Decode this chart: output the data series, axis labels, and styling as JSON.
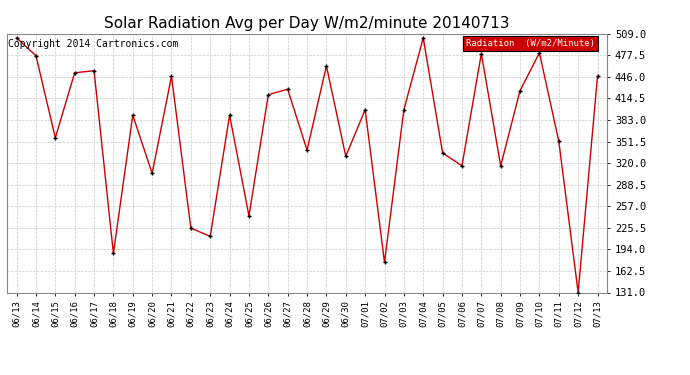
{
  "title": "Solar Radiation Avg per Day W/m2/minute 20140713",
  "copyright": "Copyright 2014 Cartronics.com",
  "legend_label": "Radiation  (W/m2/Minute)",
  "x_labels": [
    "06/13",
    "06/14",
    "06/15",
    "06/16",
    "06/17",
    "06/18",
    "06/19",
    "06/20",
    "06/21",
    "06/22",
    "06/23",
    "06/24",
    "06/25",
    "06/26",
    "06/27",
    "06/28",
    "06/29",
    "06/30",
    "07/01",
    "07/02",
    "07/03",
    "07/04",
    "07/05",
    "07/06",
    "07/07",
    "07/08",
    "07/09",
    "07/10",
    "07/11",
    "07/12",
    "07/13"
  ],
  "values": [
    503,
    477,
    357,
    452,
    455,
    188,
    390,
    305,
    447,
    225,
    213,
    390,
    243,
    420,
    428,
    339,
    462,
    330,
    398,
    175,
    398,
    503,
    335,
    316,
    480,
    316,
    426,
    481,
    352,
    131,
    447
  ],
  "line_color": "#cc0000",
  "marker_color": "#000000",
  "background_color": "#ffffff",
  "plot_bg_color": "#ffffff",
  "grid_color": "#bbbbbb",
  "ylim": [
    131.0,
    509.0
  ],
  "yticks": [
    131.0,
    162.5,
    194.0,
    225.5,
    257.0,
    288.5,
    320.0,
    351.5,
    383.0,
    414.5,
    446.0,
    477.5,
    509.0
  ],
  "title_fontsize": 11,
  "copyright_fontsize": 7,
  "legend_bg_color": "#cc0000",
  "legend_text_color": "#ffffff",
  "legend_border_color": "#000000"
}
